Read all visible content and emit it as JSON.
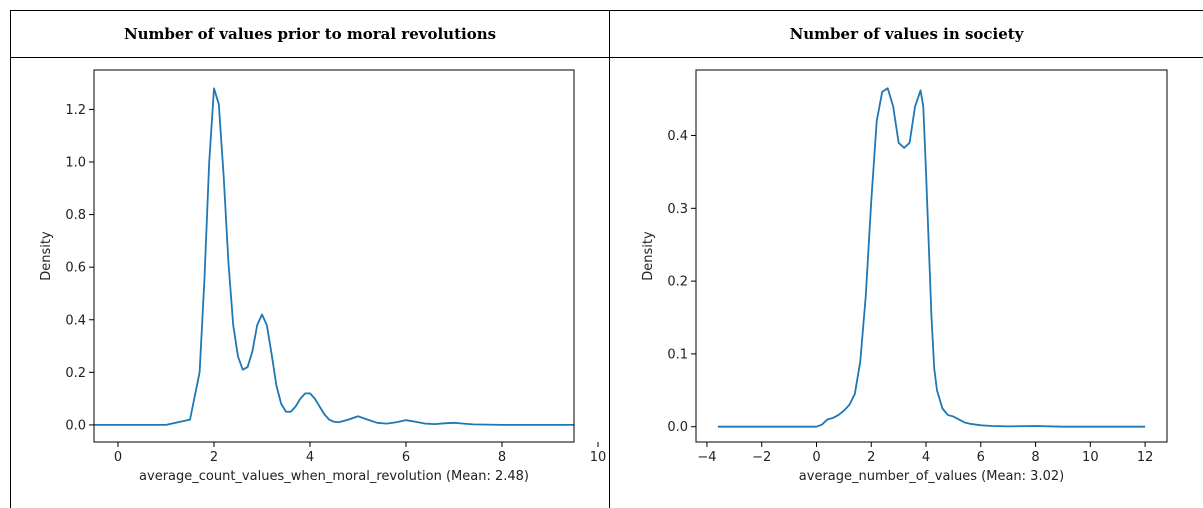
{
  "headers": {
    "left": "Number of values prior to moral revolutions",
    "right": "Number of values in society"
  },
  "chart_data": [
    {
      "type": "line",
      "xlabel": "average_count_values_when_moral_revolution (Mean: 2.48)",
      "ylabel": "Density",
      "xlim": [
        -0.5,
        9.5
      ],
      "ylim": [
        -0.065,
        1.35
      ],
      "xticks": [
        0,
        2,
        4,
        6,
        8,
        10
      ],
      "yticks": [
        0.0,
        0.2,
        0.4,
        0.6,
        0.8,
        1.0,
        1.2
      ],
      "ytick_labels": [
        "0.0",
        "0.2",
        "0.4",
        "0.6",
        "0.8",
        "1.0",
        "1.2"
      ],
      "color": "#1f77b4",
      "x": [
        -0.5,
        1.0,
        1.5,
        1.7,
        1.8,
        1.9,
        2.0,
        2.1,
        2.2,
        2.3,
        2.4,
        2.5,
        2.6,
        2.7,
        2.8,
        2.9,
        3.0,
        3.1,
        3.2,
        3.3,
        3.4,
        3.5,
        3.6,
        3.7,
        3.8,
        3.9,
        4.0,
        4.1,
        4.2,
        4.3,
        4.4,
        4.5,
        4.6,
        4.8,
        5.0,
        5.2,
        5.4,
        5.6,
        5.8,
        6.0,
        6.2,
        6.4,
        6.6,
        6.8,
        7.0,
        7.2,
        7.4,
        8.0,
        9.5
      ],
      "y": [
        0.0,
        0.0,
        0.02,
        0.2,
        0.55,
        1.0,
        1.28,
        1.22,
        0.95,
        0.62,
        0.38,
        0.26,
        0.21,
        0.22,
        0.28,
        0.38,
        0.42,
        0.38,
        0.27,
        0.15,
        0.08,
        0.05,
        0.05,
        0.07,
        0.1,
        0.12,
        0.12,
        0.1,
        0.07,
        0.04,
        0.02,
        0.012,
        0.01,
        0.02,
        0.033,
        0.02,
        0.008,
        0.005,
        0.01,
        0.018,
        0.012,
        0.005,
        0.003,
        0.006,
        0.008,
        0.005,
        0.002,
        0.0,
        0.0
      ]
    },
    {
      "type": "line",
      "xlabel": "average_number_of_values (Mean: 3.02)",
      "ylabel": "Density",
      "xlim": [
        -4.4,
        12.8
      ],
      "ylim": [
        -0.021,
        0.49
      ],
      "xticks": [
        -4,
        -2,
        0,
        2,
        4,
        6,
        8,
        10,
        12
      ],
      "xtick_labels": [
        "−4",
        "−2",
        "0",
        "2",
        "4",
        "6",
        "8",
        "10",
        "12"
      ],
      "yticks": [
        0.0,
        0.1,
        0.2,
        0.3,
        0.4
      ],
      "ytick_labels": [
        "0.0",
        "0.1",
        "0.2",
        "0.3",
        "0.4"
      ],
      "color": "#1f77b4",
      "x": [
        -3.6,
        -1.0,
        0.0,
        0.2,
        0.4,
        0.6,
        0.8,
        1.0,
        1.2,
        1.4,
        1.6,
        1.8,
        2.0,
        2.2,
        2.4,
        2.6,
        2.8,
        3.0,
        3.2,
        3.4,
        3.6,
        3.8,
        3.9,
        4.0,
        4.1,
        4.2,
        4.3,
        4.4,
        4.6,
        4.8,
        5.0,
        5.2,
        5.4,
        5.6,
        6.0,
        6.4,
        7.0,
        8.0,
        9.0,
        12.0
      ],
      "y": [
        0.0,
        0.0,
        0.0,
        0.003,
        0.01,
        0.012,
        0.016,
        0.022,
        0.03,
        0.045,
        0.09,
        0.18,
        0.31,
        0.42,
        0.46,
        0.465,
        0.44,
        0.39,
        0.383,
        0.39,
        0.44,
        0.462,
        0.44,
        0.35,
        0.25,
        0.15,
        0.08,
        0.05,
        0.025,
        0.016,
        0.014,
        0.01,
        0.006,
        0.004,
        0.002,
        0.001,
        0.0005,
        0.001,
        0.0,
        0.0
      ]
    }
  ]
}
